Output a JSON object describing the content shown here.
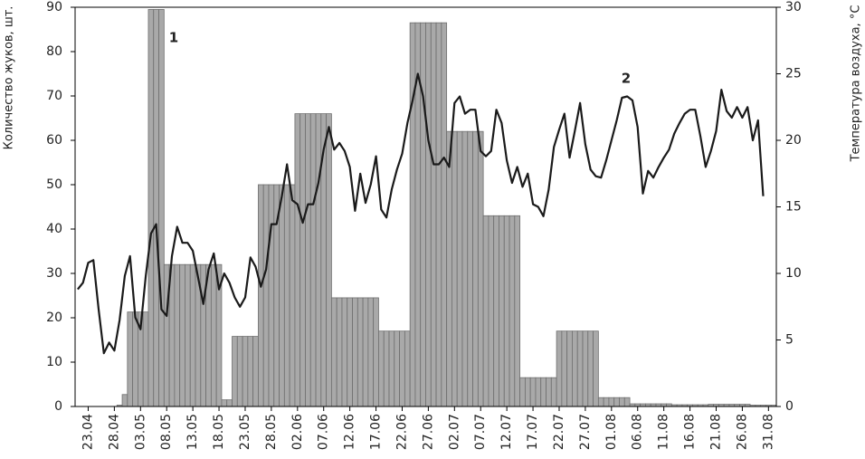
{
  "chart_data": {
    "type": "bar-line",
    "y_label": "Количество жуков, шт.",
    "y2_label": "Температура воздуха, °С",
    "categories": [
      null,
      null,
      "23.04",
      null,
      null,
      null,
      null,
      "28.04",
      null,
      null,
      null,
      null,
      "03.05",
      null,
      null,
      null,
      null,
      "08.05",
      null,
      null,
      null,
      null,
      "13.05",
      null,
      null,
      null,
      null,
      "18.05",
      null,
      null,
      null,
      null,
      "23.05",
      null,
      null,
      null,
      null,
      "28.05",
      null,
      null,
      null,
      null,
      "02.06",
      null,
      null,
      null,
      null,
      "07.06",
      null,
      null,
      null,
      null,
      "12.06",
      null,
      null,
      null,
      null,
      "17.06",
      null,
      null,
      null,
      null,
      "22.06",
      null,
      null,
      null,
      null,
      "27.06",
      null,
      null,
      null,
      null,
      "02.07",
      null,
      null,
      null,
      null,
      "07.07",
      null,
      null,
      null,
      null,
      "12.07",
      null,
      null,
      null,
      null,
      "17.07",
      null,
      null,
      null,
      null,
      "22.07",
      null,
      null,
      null,
      null,
      "27.07",
      null,
      null,
      null,
      null,
      "01.08",
      null,
      null,
      null,
      null,
      "06.08",
      null,
      null,
      null,
      null,
      "11.08",
      null,
      null,
      null,
      null,
      "16.08",
      null,
      null,
      null,
      null,
      "21.08",
      null,
      null,
      null,
      null,
      "26.08",
      null,
      null,
      null,
      null,
      "31.08",
      null
    ],
    "series": [
      {
        "type": "bar",
        "color": "#a9a9a9",
        "values": [
          null,
          null,
          null,
          null,
          null,
          null,
          null,
          null,
          0.3,
          2.7,
          21.3,
          21.3,
          21.3,
          21.3,
          89.5,
          89.5,
          89.5,
          32,
          32,
          32,
          32,
          32,
          32,
          32,
          32,
          32,
          32,
          32,
          1.5,
          1.5,
          15.8,
          15.8,
          15.8,
          15.8,
          15.8,
          50,
          50,
          50,
          50,
          50,
          50,
          50,
          66,
          66,
          66,
          66,
          66,
          66,
          66,
          24.5,
          24.5,
          24.5,
          24.5,
          24.5,
          24.5,
          24.5,
          24.5,
          24.5,
          17,
          17,
          17,
          17,
          17,
          17,
          86.5,
          86.5,
          86.5,
          86.5,
          86.5,
          86.5,
          86.5,
          62,
          62,
          62,
          62,
          62,
          62,
          62,
          43,
          43,
          43,
          43,
          43,
          43,
          43,
          6.5,
          6.5,
          6.5,
          6.5,
          6.5,
          6.5,
          6.5,
          17,
          17,
          17,
          17,
          17,
          17,
          17,
          17,
          2,
          2,
          2,
          2,
          2,
          2,
          0.6,
          0.6,
          0.6,
          0.6,
          0.6,
          0.6,
          0.6,
          0.6,
          0.4,
          0.4,
          0.4,
          0.4,
          0.4,
          0.4,
          0.4,
          0.5,
          0.5,
          0.5,
          0.5,
          0.5,
          0.5,
          0.5,
          0.5,
          0.3,
          0.3,
          0.3,
          0.3,
          0.3
        ]
      },
      {
        "type": "line",
        "axis": "y2",
        "color": "#1a1a1a",
        "values": [
          8.8,
          9.3,
          10.8,
          11,
          7.3,
          4,
          4.8,
          4.2,
          6.5,
          9.8,
          11.3,
          6.7,
          5.8,
          9.8,
          13,
          13.7,
          7.3,
          6.8,
          11.3,
          13.5,
          12.3,
          12.3,
          11.7,
          9.7,
          7.7,
          10.3,
          11.5,
          8.8,
          10,
          9.3,
          8.2,
          7.5,
          8.2,
          11.2,
          10.5,
          9,
          10.3,
          13.7,
          13.7,
          15.8,
          18.2,
          15.5,
          15.2,
          13.8,
          15.2,
          15.2,
          16.8,
          19.3,
          21,
          19.3,
          19.8,
          19.2,
          18,
          14.7,
          17.5,
          15.3,
          16.7,
          18.8,
          14.8,
          14.2,
          16.3,
          17.8,
          19,
          21.3,
          23,
          25,
          23.3,
          20,
          18.2,
          18.2,
          18.7,
          18,
          22.8,
          23.3,
          22,
          22.3,
          22.3,
          19.2,
          18.8,
          19.2,
          22.3,
          21.3,
          18.5,
          16.8,
          18,
          16.5,
          17.5,
          15.2,
          15,
          14.3,
          16.3,
          19.5,
          20.8,
          22,
          18.7,
          20.7,
          22.8,
          19.7,
          17.8,
          17.3,
          17.2,
          18.5,
          20,
          21.5,
          23.2,
          23.3,
          23,
          21,
          16,
          17.7,
          17.2,
          18,
          18.7,
          19.3,
          20.5,
          21.3,
          22,
          22.3,
          22.3,
          20.3,
          18,
          19.2,
          20.7,
          23.8,
          22.2,
          21.7,
          22.5,
          21.7,
          22.5,
          20,
          21.5,
          15.8,
          null,
          null
        ]
      }
    ],
    "ylim": [
      0,
      90
    ],
    "yticks": [
      0,
      10,
      20,
      30,
      40,
      50,
      60,
      70,
      80,
      90
    ],
    "y2lim": [
      0,
      30
    ],
    "y2ticks": [
      0,
      5,
      10,
      15,
      20,
      25,
      30
    ],
    "annotations": [
      {
        "text": "1"
      },
      {
        "text": "2"
      }
    ]
  }
}
